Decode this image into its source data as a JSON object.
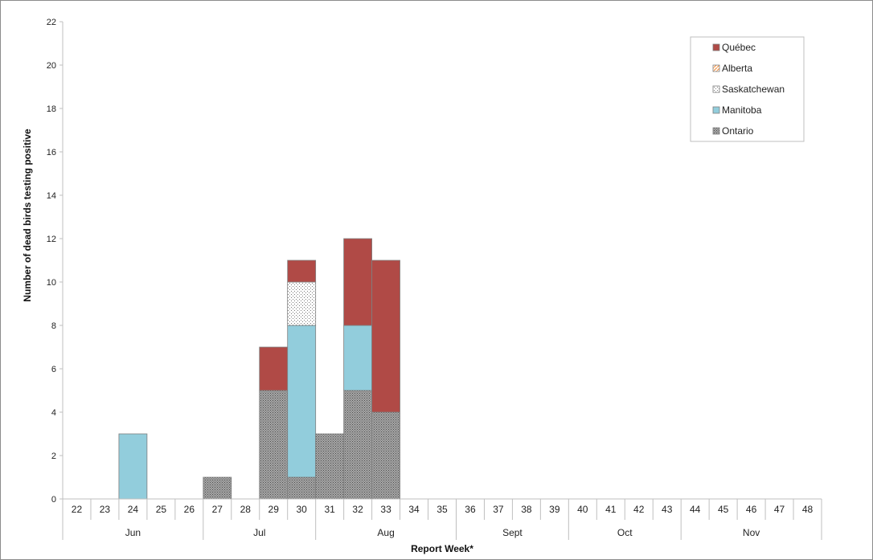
{
  "chart_data": {
    "type": "bar",
    "stacked": true,
    "title": "",
    "xlabel": "Report Week*",
    "ylabel": "Number of dead birds testing positive",
    "ylim": [
      0,
      22
    ],
    "yticks": [
      "0",
      "2",
      "4",
      "6",
      "8",
      "10",
      "12",
      "14",
      "16",
      "18",
      "20",
      "22"
    ],
    "categories": [
      "22",
      "23",
      "24",
      "25",
      "26",
      "27",
      "28",
      "29",
      "30",
      "31",
      "32",
      "33",
      "34",
      "35",
      "36",
      "37",
      "38",
      "39",
      "40",
      "41",
      "42",
      "43",
      "44",
      "45",
      "46",
      "47",
      "48"
    ],
    "months": [
      {
        "label": "Jun",
        "start": 0,
        "end": 4
      },
      {
        "label": "Jul",
        "start": 5,
        "end": 8
      },
      {
        "label": "Aug",
        "start": 9,
        "end": 13
      },
      {
        "label": "Sept",
        "start": 14,
        "end": 17
      },
      {
        "label": "Oct",
        "start": 18,
        "end": 21
      },
      {
        "label": "Nov",
        "start": 22,
        "end": 26
      }
    ],
    "series": [
      {
        "name": "Ontario",
        "color": "#8f8f8f",
        "pattern": "dense-dots",
        "values": [
          0,
          0,
          0,
          0,
          0,
          1,
          0,
          5,
          1,
          3,
          5,
          4,
          0,
          0,
          0,
          0,
          0,
          0,
          0,
          0,
          0,
          0,
          0,
          0,
          0,
          0,
          0
        ]
      },
      {
        "name": "Manitoba",
        "color": "#92cddc",
        "pattern": "solid",
        "values": [
          0,
          0,
          3,
          0,
          0,
          0,
          0,
          0,
          7,
          0,
          3,
          0,
          0,
          0,
          0,
          0,
          0,
          0,
          0,
          0,
          0,
          0,
          0,
          0,
          0,
          0,
          0
        ]
      },
      {
        "name": "Saskatchewan",
        "color": "#ffffff",
        "pattern": "light-dots",
        "values": [
          0,
          0,
          0,
          0,
          0,
          0,
          0,
          0,
          2,
          0,
          0,
          0,
          0,
          0,
          0,
          0,
          0,
          0,
          0,
          0,
          0,
          0,
          0,
          0,
          0,
          0,
          0
        ]
      },
      {
        "name": "Alberta",
        "color": "#f79646",
        "pattern": "diagonal",
        "values": [
          0,
          0,
          0,
          0,
          0,
          0,
          0,
          0,
          0,
          0,
          0,
          0,
          0,
          0,
          0,
          0,
          0,
          0,
          0,
          0,
          0,
          0,
          0,
          0,
          0,
          0,
          0
        ]
      },
      {
        "name": "Québec",
        "color": "#b04a46",
        "pattern": "solid",
        "values": [
          0,
          0,
          0,
          0,
          0,
          0,
          0,
          2,
          1,
          0,
          4,
          7,
          0,
          0,
          0,
          0,
          0,
          0,
          0,
          0,
          0,
          0,
          0,
          0,
          0,
          0,
          0
        ]
      }
    ],
    "legend": {
      "position": "top-right",
      "order": [
        "Québec",
        "Alberta",
        "Saskatchewan",
        "Manitoba",
        "Ontario"
      ]
    },
    "grid": false
  }
}
